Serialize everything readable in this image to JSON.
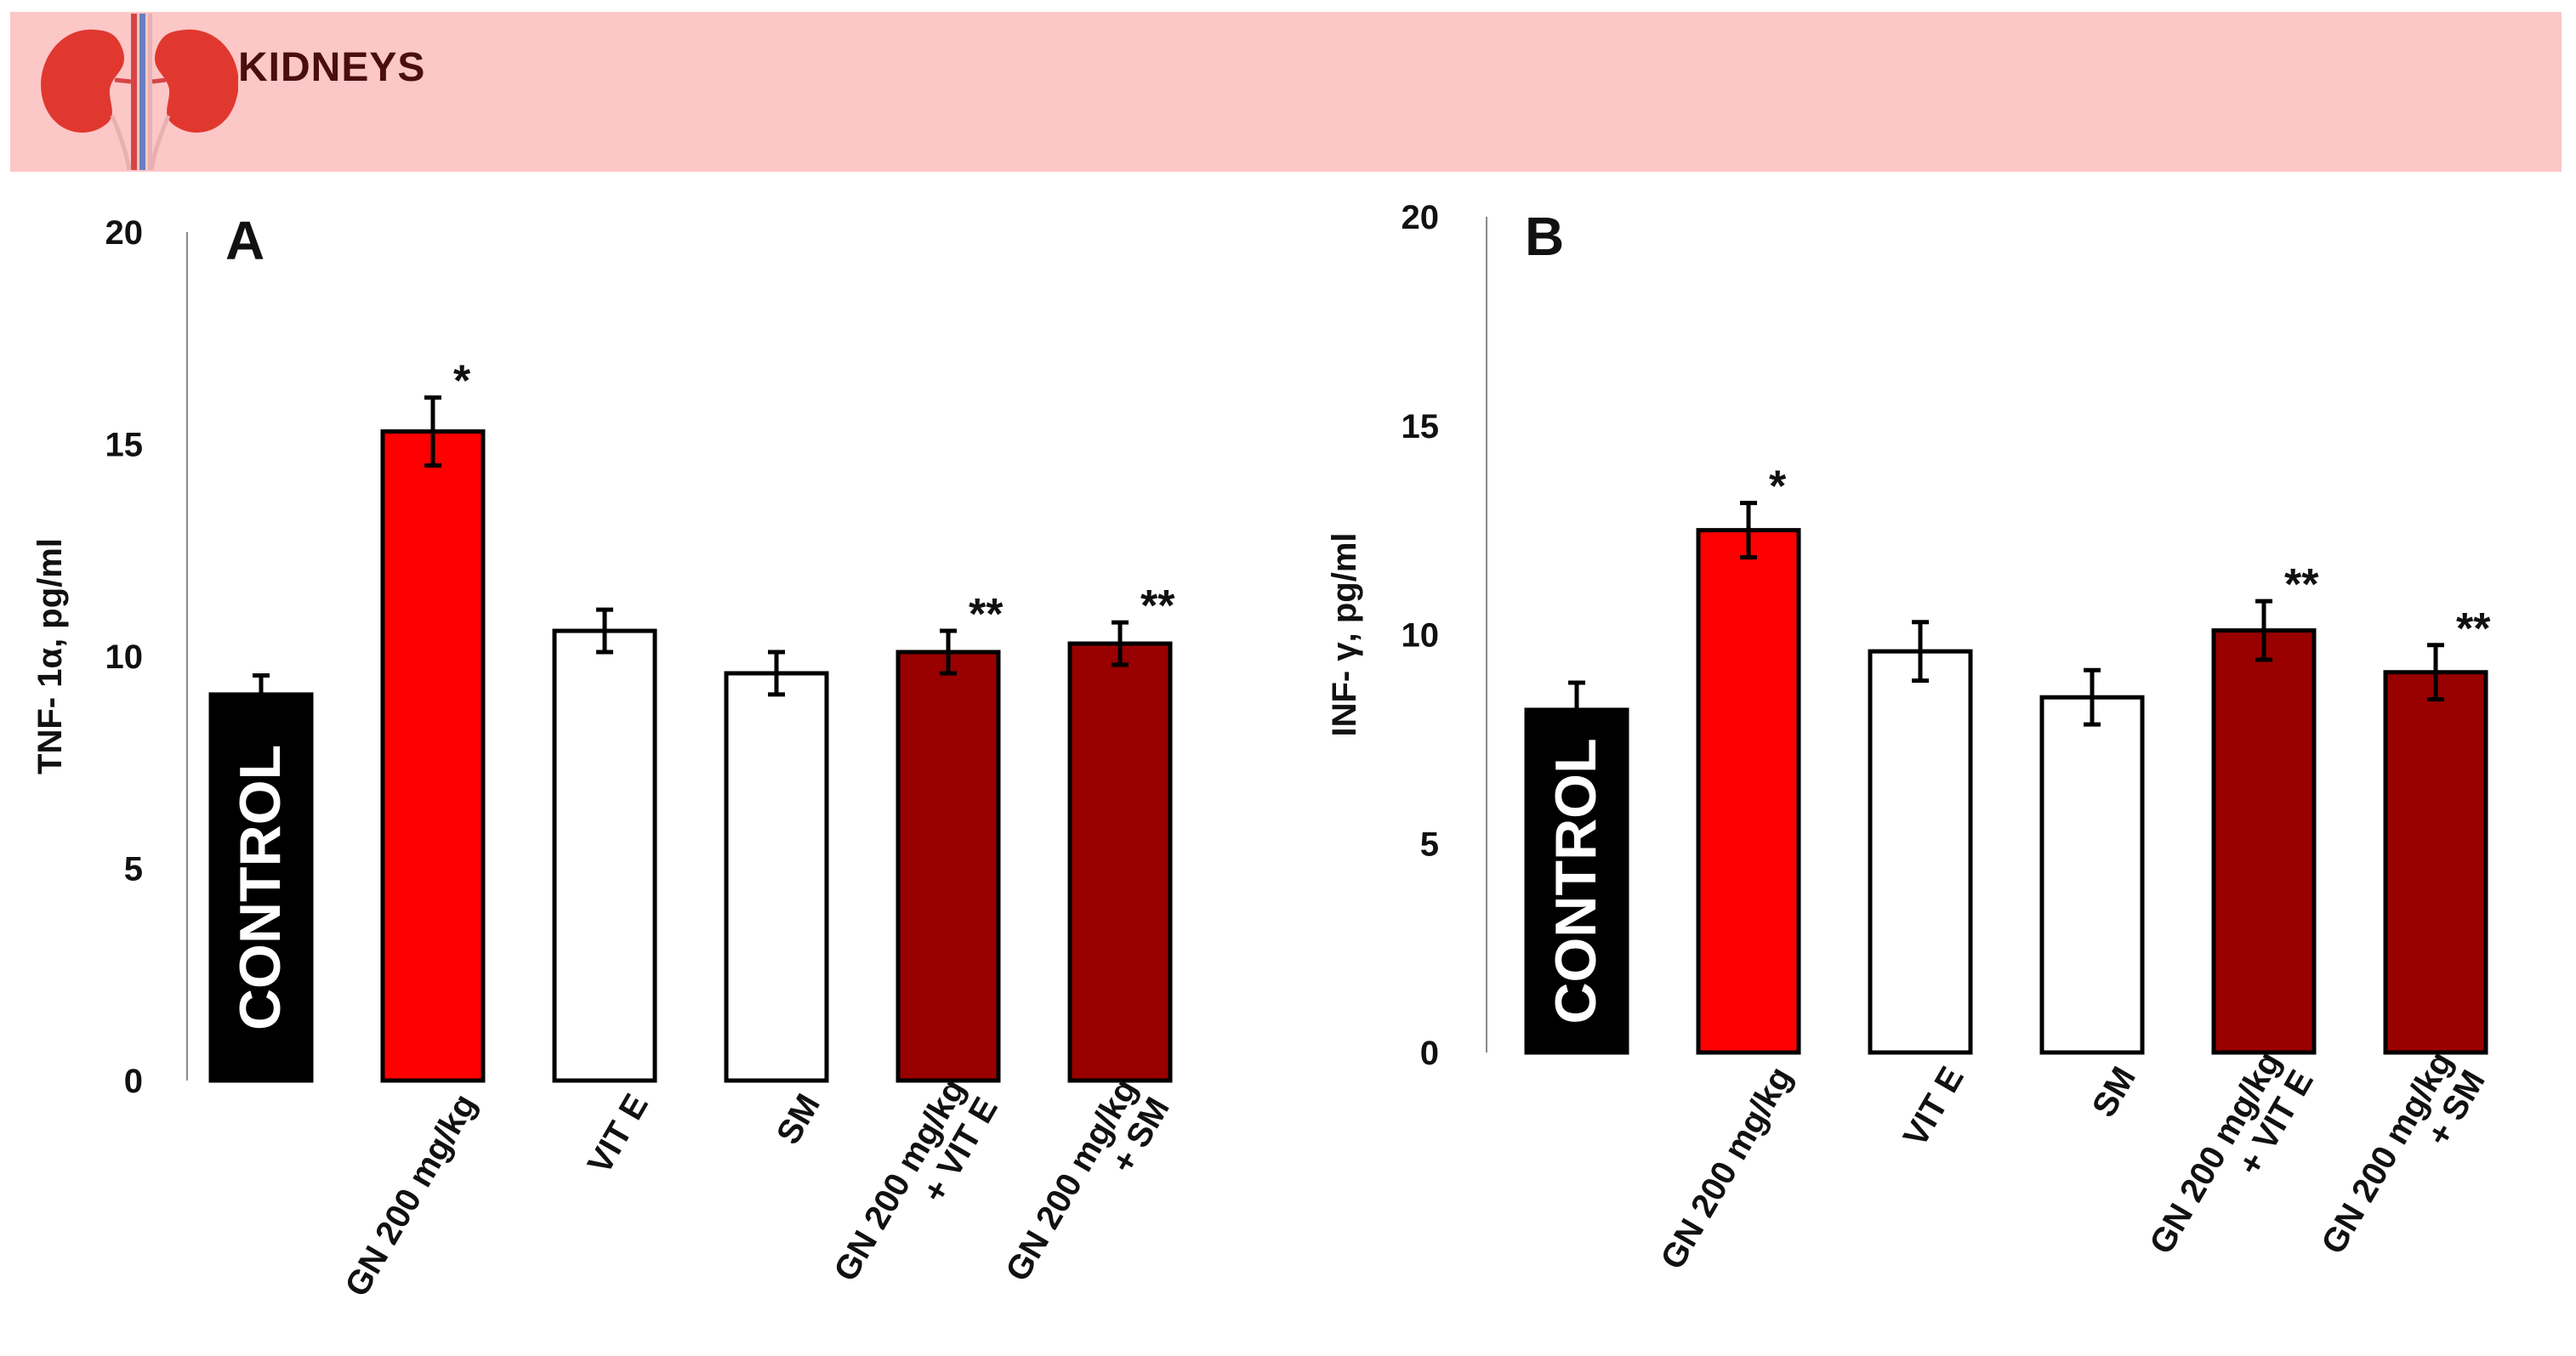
{
  "banner": {
    "title": "KIDNEYS"
  },
  "colors": {
    "black": "#000000",
    "red": "#ff0000",
    "white": "#ffffff",
    "darkred": "#990000",
    "banner": "#fcc7c7"
  },
  "chart_data": [
    {
      "type": "bar",
      "panel": "A",
      "ylabel": "TNF- 1α, pg/ml",
      "ylim": [
        0,
        20
      ],
      "yticks": [
        "0",
        "5",
        "10",
        "15",
        "20"
      ],
      "categories": [
        "CONTROL",
        "GN 200 mg/kg",
        "VIT E",
        "SM",
        "GN 200 mg/kg\n+ VIT E",
        "GN 200 mg/kg\n+ SM"
      ],
      "values": [
        9.1,
        15.3,
        10.6,
        9.6,
        10.1,
        10.3
      ],
      "errors": [
        0.45,
        0.8,
        0.5,
        0.5,
        0.5,
        0.5
      ],
      "fills": [
        "black",
        "red",
        "white",
        "white",
        "darkred",
        "darkred"
      ],
      "significance": [
        "",
        "*",
        "",
        "",
        "**",
        "**"
      ],
      "inbar_label": "CONTROL"
    },
    {
      "type": "bar",
      "panel": "B",
      "ylabel": "INF- γ, pg/ml",
      "ylim": [
        0,
        20
      ],
      "yticks": [
        "0",
        "5",
        "10",
        "15",
        "20"
      ],
      "categories": [
        "CONTROL",
        "GN 200 mg/kg",
        "VIT E",
        "SM",
        "GN 200 mg/kg\n+ VIT E",
        "GN 200 mg/kg\n+ SM"
      ],
      "values": [
        8.2,
        12.5,
        9.6,
        8.5,
        10.1,
        9.1
      ],
      "errors": [
        0.65,
        0.65,
        0.7,
        0.65,
        0.7,
        0.65
      ],
      "fills": [
        "black",
        "red",
        "white",
        "white",
        "darkred",
        "darkred"
      ],
      "significance": [
        "",
        "*",
        "",
        "",
        "**",
        "**"
      ],
      "inbar_label": "CONTROL"
    }
  ]
}
